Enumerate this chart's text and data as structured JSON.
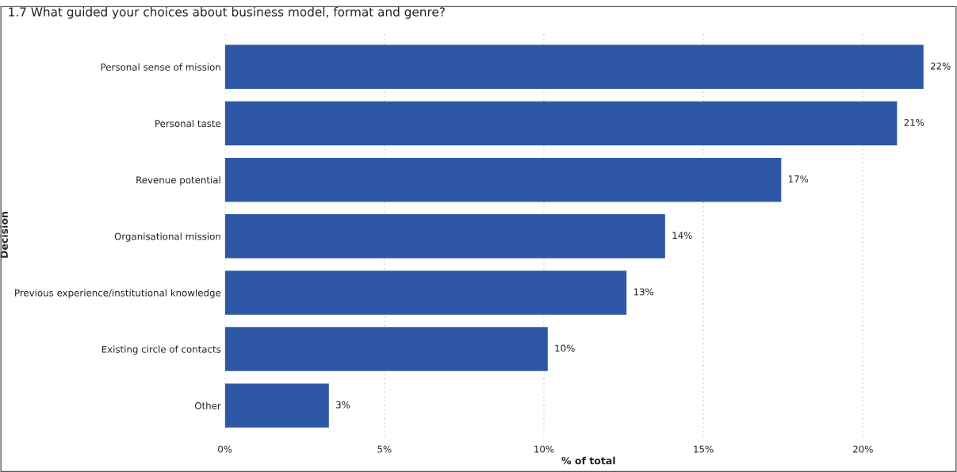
{
  "chart_data": {
    "type": "bar",
    "orientation": "horizontal",
    "title": "1.7 What guided your choices about business model, format and genre?",
    "xlabel": "% of total",
    "ylabel": "Decision",
    "categories": [
      "Personal sense of mission",
      "Personal taste",
      "Revenue potential",
      "Organisational mission",
      "Previous experience/institutional knowledge",
      "Existing circle of contacts",
      "Other"
    ],
    "values": [
      21.9,
      21.07,
      17.44,
      13.8,
      12.59,
      10.12,
      3.26
    ],
    "value_labels": [
      "22%",
      "21%",
      "17%",
      "14%",
      "13%",
      "10%",
      "3%"
    ],
    "color": "#2e58a6",
    "xlim": [
      0,
      22.8
    ],
    "xticks": [
      {
        "value": 0,
        "label": "0%"
      },
      {
        "value": 5,
        "label": "5%"
      },
      {
        "value": 10,
        "label": "10%"
      },
      {
        "value": 15,
        "label": "15%"
      },
      {
        "value": 20,
        "label": "20%"
      }
    ],
    "grid": "x"
  }
}
